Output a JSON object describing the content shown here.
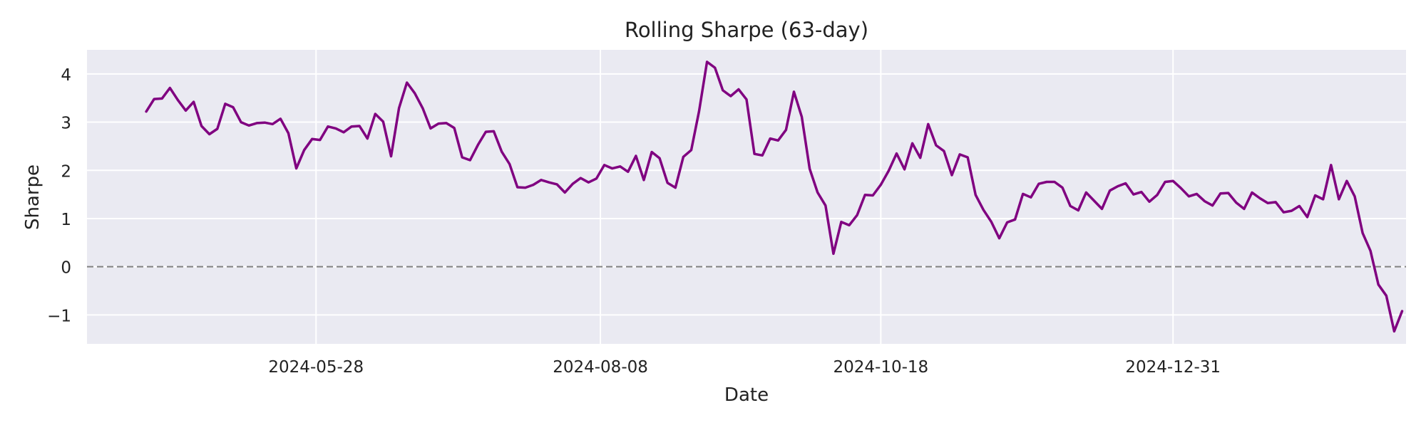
{
  "chart_data": {
    "type": "line",
    "title": "Rolling Sharpe (63-day)",
    "xlabel": "Date",
    "ylabel": "Sharpe",
    "x_range": [
      "2024-03-31",
      "2025-02-28"
    ],
    "ylim": [
      -1.6,
      4.5
    ],
    "x_ticks": [
      "2024-05-28",
      "2024-08-08",
      "2024-10-18",
      "2024-12-31"
    ],
    "y_ticks": [
      -1,
      0,
      1,
      2,
      3,
      4
    ],
    "y_tick_labels": [
      "−1",
      "0",
      "1",
      "2",
      "3",
      "4"
    ],
    "grid": true,
    "background": "#eaeaf2",
    "line_color": "#800080",
    "reference_line": {
      "y": 0,
      "style": "dashed",
      "color": "#808080"
    },
    "series": [
      {
        "points": [
          [
            "2024-04-15",
            3.22
          ],
          [
            "2024-04-17",
            3.48
          ],
          [
            "2024-04-19",
            3.49
          ],
          [
            "2024-04-21",
            3.71
          ],
          [
            "2024-04-23",
            3.46
          ],
          [
            "2024-04-25",
            3.24
          ],
          [
            "2024-04-27",
            3.42
          ],
          [
            "2024-04-29",
            2.92
          ],
          [
            "2024-05-01",
            2.75
          ],
          [
            "2024-05-03",
            2.86
          ],
          [
            "2024-05-05",
            3.38
          ],
          [
            "2024-05-07",
            3.31
          ],
          [
            "2024-05-09",
            3.0
          ],
          [
            "2024-05-11",
            2.93
          ],
          [
            "2024-05-13",
            2.98
          ],
          [
            "2024-05-15",
            2.99
          ],
          [
            "2024-05-17",
            2.96
          ],
          [
            "2024-05-19",
            3.07
          ],
          [
            "2024-05-21",
            2.77
          ],
          [
            "2024-05-23",
            2.04
          ],
          [
            "2024-05-25",
            2.42
          ],
          [
            "2024-05-27",
            2.65
          ],
          [
            "2024-05-29",
            2.63
          ],
          [
            "2024-05-31",
            2.91
          ],
          [
            "2024-06-02",
            2.87
          ],
          [
            "2024-06-04",
            2.79
          ],
          [
            "2024-06-06",
            2.91
          ],
          [
            "2024-06-08",
            2.92
          ],
          [
            "2024-06-10",
            2.66
          ],
          [
            "2024-06-12",
            3.17
          ],
          [
            "2024-06-14",
            3.01
          ],
          [
            "2024-06-16",
            2.29
          ],
          [
            "2024-06-18",
            3.29
          ],
          [
            "2024-06-20",
            3.82
          ],
          [
            "2024-06-22",
            3.6
          ],
          [
            "2024-06-24",
            3.29
          ],
          [
            "2024-06-26",
            2.87
          ],
          [
            "2024-06-28",
            2.97
          ],
          [
            "2024-06-30",
            2.98
          ],
          [
            "2024-07-02",
            2.88
          ],
          [
            "2024-07-04",
            2.27
          ],
          [
            "2024-07-06",
            2.21
          ],
          [
            "2024-07-08",
            2.53
          ],
          [
            "2024-07-10",
            2.8
          ],
          [
            "2024-07-12",
            2.81
          ],
          [
            "2024-07-14",
            2.39
          ],
          [
            "2024-07-16",
            2.13
          ],
          [
            "2024-07-18",
            1.65
          ],
          [
            "2024-07-20",
            1.64
          ],
          [
            "2024-07-22",
            1.7
          ],
          [
            "2024-07-24",
            1.8
          ],
          [
            "2024-07-26",
            1.75
          ],
          [
            "2024-07-28",
            1.71
          ],
          [
            "2024-07-30",
            1.54
          ],
          [
            "2024-08-01",
            1.72
          ],
          [
            "2024-08-03",
            1.84
          ],
          [
            "2024-08-05",
            1.75
          ],
          [
            "2024-08-07",
            1.83
          ],
          [
            "2024-08-09",
            2.11
          ],
          [
            "2024-08-11",
            2.04
          ],
          [
            "2024-08-13",
            2.08
          ],
          [
            "2024-08-15",
            1.97
          ],
          [
            "2024-08-17",
            2.3
          ],
          [
            "2024-08-19",
            1.8
          ],
          [
            "2024-08-21",
            2.38
          ],
          [
            "2024-08-23",
            2.25
          ],
          [
            "2024-08-25",
            1.74
          ],
          [
            "2024-08-27",
            1.64
          ],
          [
            "2024-08-29",
            2.28
          ],
          [
            "2024-08-31",
            2.42
          ],
          [
            "2024-09-02",
            3.23
          ],
          [
            "2024-09-04",
            4.25
          ],
          [
            "2024-09-06",
            4.13
          ],
          [
            "2024-09-08",
            3.66
          ],
          [
            "2024-09-10",
            3.54
          ],
          [
            "2024-09-12",
            3.68
          ],
          [
            "2024-09-14",
            3.47
          ],
          [
            "2024-09-16",
            2.34
          ],
          [
            "2024-09-18",
            2.31
          ],
          [
            "2024-09-20",
            2.66
          ],
          [
            "2024-09-22",
            2.62
          ],
          [
            "2024-09-24",
            2.84
          ],
          [
            "2024-09-26",
            3.63
          ],
          [
            "2024-09-28",
            3.11
          ],
          [
            "2024-09-30",
            2.03
          ],
          [
            "2024-10-02",
            1.54
          ],
          [
            "2024-10-04",
            1.27
          ],
          [
            "2024-10-06",
            0.27
          ],
          [
            "2024-10-08",
            0.93
          ],
          [
            "2024-10-10",
            0.86
          ],
          [
            "2024-10-12",
            1.07
          ],
          [
            "2024-10-14",
            1.49
          ],
          [
            "2024-10-16",
            1.48
          ],
          [
            "2024-10-18",
            1.7
          ],
          [
            "2024-10-20",
            1.99
          ],
          [
            "2024-10-22",
            2.35
          ],
          [
            "2024-10-24",
            2.02
          ],
          [
            "2024-10-26",
            2.56
          ],
          [
            "2024-10-28",
            2.26
          ],
          [
            "2024-10-30",
            2.96
          ],
          [
            "2024-11-01",
            2.52
          ],
          [
            "2024-11-03",
            2.4
          ],
          [
            "2024-11-05",
            1.9
          ],
          [
            "2024-11-07",
            2.33
          ],
          [
            "2024-11-09",
            2.27
          ],
          [
            "2024-11-11",
            1.49
          ],
          [
            "2024-11-13",
            1.18
          ],
          [
            "2024-11-15",
            0.93
          ],
          [
            "2024-11-17",
            0.59
          ],
          [
            "2024-11-19",
            0.92
          ],
          [
            "2024-11-21",
            0.98
          ],
          [
            "2024-11-23",
            1.51
          ],
          [
            "2024-11-25",
            1.44
          ],
          [
            "2024-11-27",
            1.72
          ],
          [
            "2024-11-29",
            1.76
          ],
          [
            "2024-12-01",
            1.76
          ],
          [
            "2024-12-03",
            1.64
          ],
          [
            "2024-12-05",
            1.26
          ],
          [
            "2024-12-07",
            1.17
          ],
          [
            "2024-12-09",
            1.54
          ],
          [
            "2024-12-11",
            1.37
          ],
          [
            "2024-12-13",
            1.2
          ],
          [
            "2024-12-15",
            1.58
          ],
          [
            "2024-12-17",
            1.67
          ],
          [
            "2024-12-19",
            1.73
          ],
          [
            "2024-12-21",
            1.5
          ],
          [
            "2024-12-23",
            1.55
          ],
          [
            "2024-12-25",
            1.35
          ],
          [
            "2024-12-27",
            1.49
          ],
          [
            "2024-12-29",
            1.76
          ],
          [
            "2024-12-31",
            1.78
          ],
          [
            "2025-01-02",
            1.63
          ],
          [
            "2025-01-04",
            1.46
          ],
          [
            "2025-01-06",
            1.51
          ],
          [
            "2025-01-08",
            1.36
          ],
          [
            "2025-01-10",
            1.27
          ],
          [
            "2025-01-12",
            1.52
          ],
          [
            "2025-01-14",
            1.53
          ],
          [
            "2025-01-16",
            1.33
          ],
          [
            "2025-01-18",
            1.2
          ],
          [
            "2025-01-20",
            1.54
          ],
          [
            "2025-01-22",
            1.42
          ],
          [
            "2025-01-24",
            1.32
          ],
          [
            "2025-01-26",
            1.34
          ],
          [
            "2025-01-28",
            1.13
          ],
          [
            "2025-01-30",
            1.16
          ],
          [
            "2025-02-01",
            1.26
          ],
          [
            "2025-02-03",
            1.03
          ],
          [
            "2025-02-05",
            1.48
          ],
          [
            "2025-02-07",
            1.4
          ],
          [
            "2025-02-09",
            2.11
          ],
          [
            "2025-02-11",
            1.4
          ],
          [
            "2025-02-13",
            1.78
          ],
          [
            "2025-02-15",
            1.46
          ],
          [
            "2025-02-17",
            0.7
          ],
          [
            "2025-02-19",
            0.33
          ],
          [
            "2025-02-21",
            -0.37
          ],
          [
            "2025-02-23",
            -0.6
          ],
          [
            "2025-02-25",
            -1.34
          ],
          [
            "2025-02-27",
            -0.92
          ]
        ]
      }
    ]
  }
}
